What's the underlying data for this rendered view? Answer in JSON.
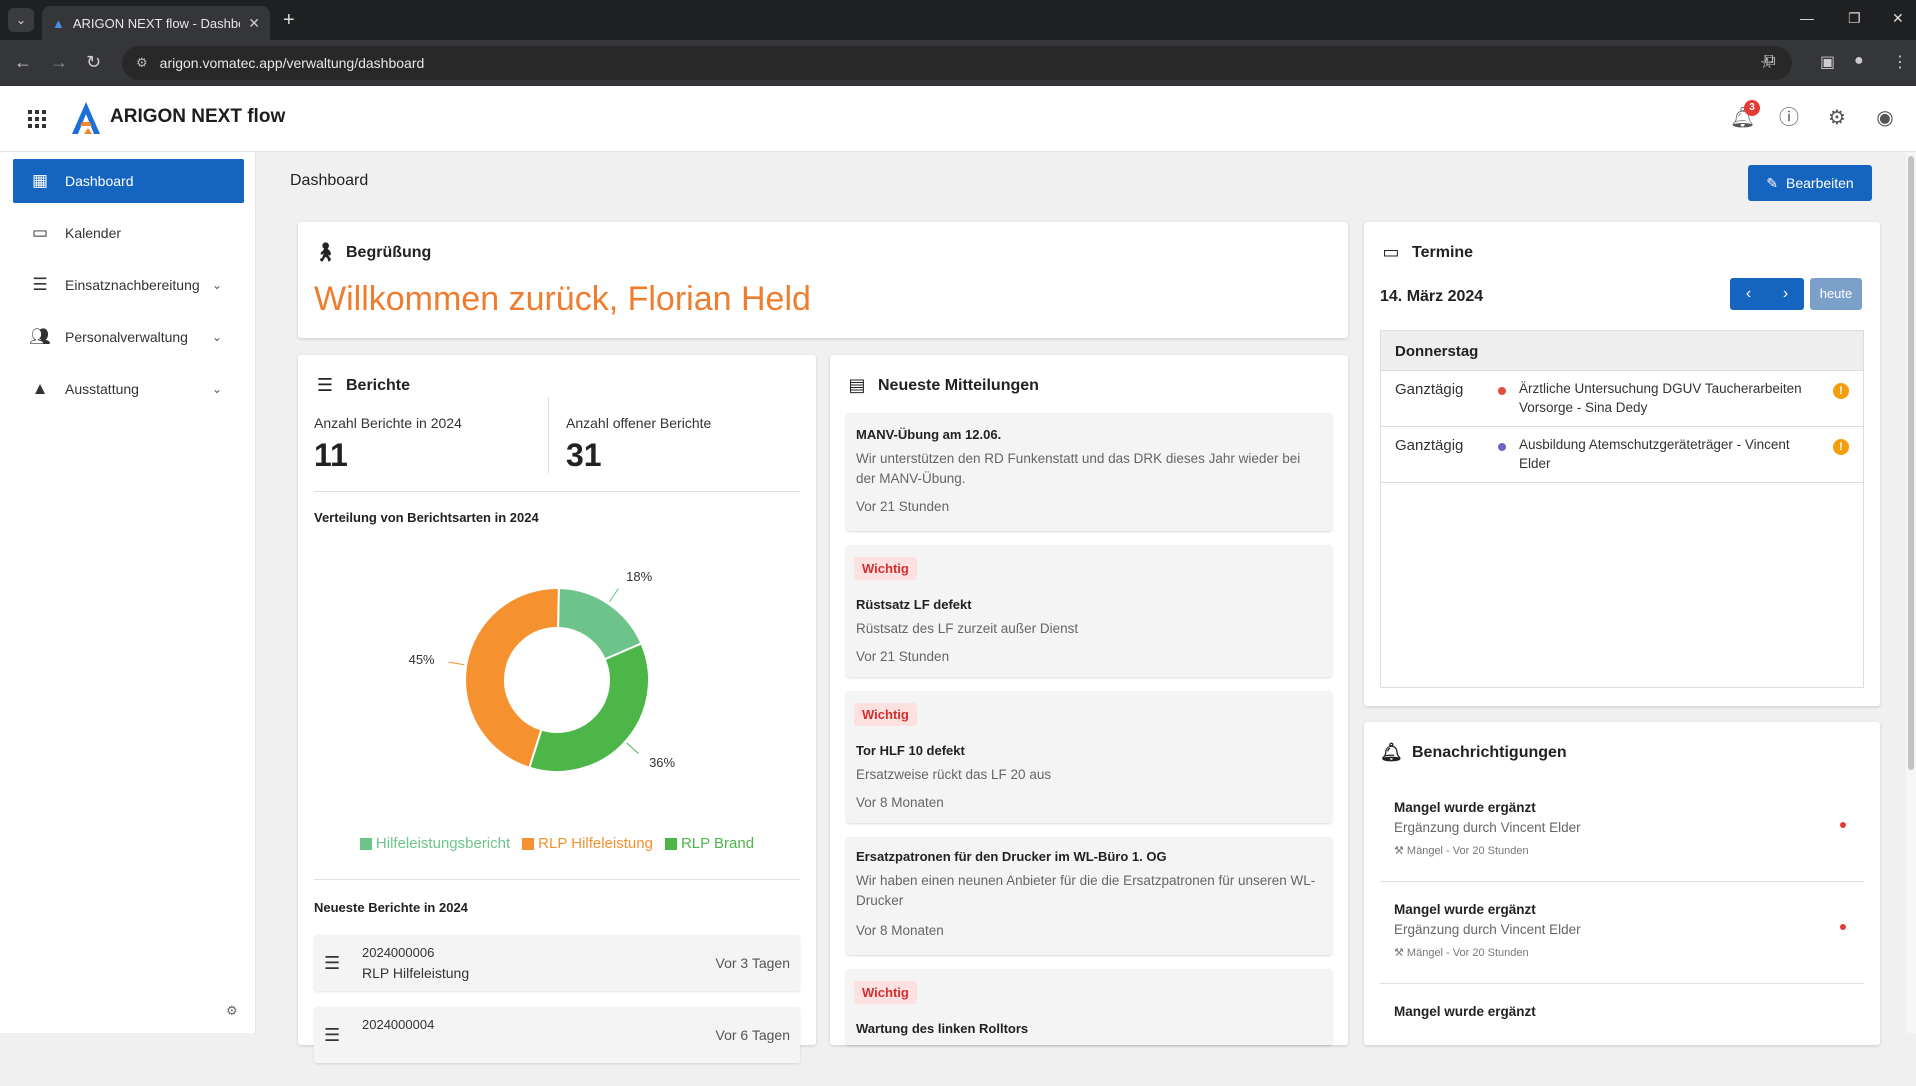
{
  "browser": {
    "tab_title": "ARIGON NEXT flow - Dashboard",
    "url": "arigon.vomatec.app/verwaltung/dashboard"
  },
  "header": {
    "app_title": "ARIGON NEXT flow",
    "notification_count": "3"
  },
  "sidebar": {
    "items": [
      {
        "label": "Dashboard",
        "icon": "dashboard-icon"
      },
      {
        "label": "Kalender",
        "icon": "calendar-icon"
      },
      {
        "label": "Einsatznachbereitung",
        "icon": "post-add-icon"
      },
      {
        "label": "Personalverwaltung",
        "icon": "people-icon"
      },
      {
        "label": "Ausstattung",
        "icon": "category-icon"
      }
    ]
  },
  "page": {
    "title": "Dashboard",
    "edit_label": "Bearbeiten"
  },
  "greeting": {
    "heading": "Begrüßung",
    "welcome": "Willkommen zurück, Florian Held"
  },
  "reports": {
    "heading": "Berichte",
    "count_label": "Anzahl Berichte in 2024",
    "count_value": "11",
    "open_label": "Anzahl offener Berichte",
    "open_value": "31",
    "distribution_label": "Verteilung von Berichtsarten in 2024",
    "latest_label": "Neueste Berichte in 2024",
    "latest": [
      {
        "number": "2024000006",
        "type": "RLP Hilfeleistung",
        "time": "Vor 3 Tagen"
      },
      {
        "number": "2024000004",
        "type": "",
        "time": "Vor 6 Tagen"
      }
    ]
  },
  "chart_data": {
    "type": "pie",
    "title": "Verteilung von Berichtsarten in 2024",
    "categories": [
      "Hilfeleistungsbericht",
      "RLP Hilfeleistung",
      "RLP Brand"
    ],
    "values": [
      18,
      45,
      36
    ],
    "labels": [
      "18%",
      "45%",
      "36%"
    ],
    "colors": [
      "#6cc48a",
      "#f5922f",
      "#4cb648"
    ],
    "legend": "bottom"
  },
  "messages": {
    "heading": "Neueste Mitteilungen",
    "items": [
      {
        "tag": "",
        "title": "MANV-Übung am 12.06.",
        "body": "Wir unterstützen den RD Funkenstatt und das DRK dieses Jahr wieder bei der MANV-Übung.",
        "time": "Vor 21 Stunden"
      },
      {
        "tag": "Wichtig",
        "title": "Rüstsatz LF defekt",
        "body": "Rüstsatz des LF zurzeit außer Dienst",
        "time": "Vor 21 Stunden"
      },
      {
        "tag": "Wichtig",
        "title": "Tor HLF 10 defekt",
        "body": "Ersatzweise rückt das LF 20 aus",
        "time": "Vor 8 Monaten"
      },
      {
        "tag": "",
        "title": "Ersatzpatronen für den Drucker im WL-Büro 1. OG",
        "body": "Wir haben einen neunen Anbieter für die die Ersatzpatronen für unseren WL-Drucker",
        "time": "Vor 8 Monaten"
      },
      {
        "tag": "Wichtig",
        "title": "Wartung des linken Rolltors",
        "body": "",
        "time": ""
      }
    ]
  },
  "appointments": {
    "heading": "Termine",
    "date": "14. März 2024",
    "today_label": "heute",
    "day": "Donnerstag",
    "items": [
      {
        "when": "Ganztägig",
        "text": "Ärztliche Untersuchung DGUV Taucherarbeiten Vorsorge - Sina Dedy",
        "dot_color": "#e74c3c"
      },
      {
        "when": "Ganztägig",
        "text": "Ausbildung Atemschutzgeräteträger - Vincent Elder",
        "dot_color": "#6b63c7"
      }
    ]
  },
  "notifications": {
    "heading": "Benachrichtigungen",
    "items": [
      {
        "title": "Mangel wurde ergänzt",
        "body": "Ergänzung durch Vincent Elder",
        "meta": "Mängel - Vor 20 Stunden"
      },
      {
        "title": "Mangel wurde ergänzt",
        "body": "Ergänzung durch Vincent Elder",
        "meta": "Mängel - Vor 20 Stunden"
      },
      {
        "title": "Mangel wurde ergänzt",
        "body": "",
        "meta": ""
      }
    ]
  }
}
